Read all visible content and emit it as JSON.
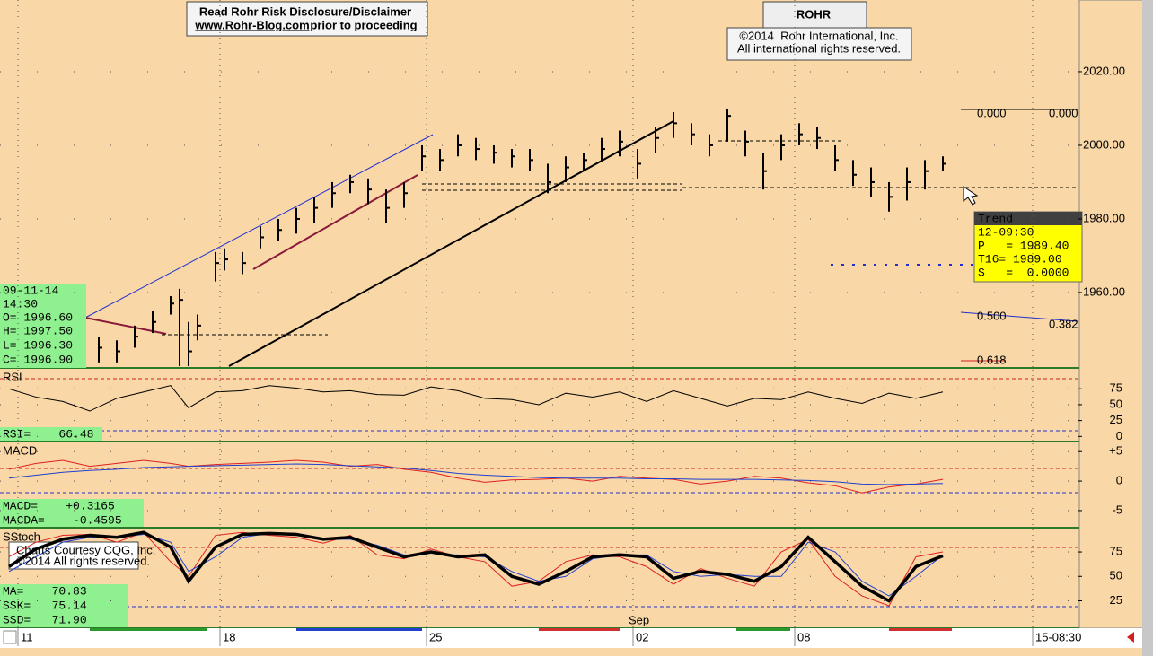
{
  "chart_data": [
    {
      "type": "ohlc",
      "color": "#000000",
      "x": [
        11,
        13,
        15,
        17,
        19,
        20,
        21,
        22,
        24,
        25,
        27,
        29,
        31,
        33,
        35,
        37,
        39,
        41,
        43,
        45,
        47,
        49,
        51,
        53,
        55,
        57,
        59,
        61,
        63,
        65,
        67,
        69,
        71,
        73,
        75,
        77,
        79,
        81,
        83,
        85,
        87,
        89,
        91,
        93,
        95,
        97,
        99,
        101,
        103,
        105
      ],
      "high": [
        1948,
        1947,
        1951,
        1955,
        1959,
        1961,
        1952,
        1954,
        1971,
        1972,
        1971,
        1978,
        1980,
        1983,
        1986,
        1990,
        1992,
        1991,
        1988,
        1990,
        2000,
        1999,
        2003,
        2002,
        2000,
        1999,
        1999,
        1995,
        1997,
        1998,
        2002,
        2004,
        1999,
        2005,
        2009,
        2006,
        2003,
        2010,
        2004,
        1998,
        2003,
        2006,
        2005,
        2000,
        1996,
        1994,
        1990,
        1994,
        1996,
        1997
      ],
      "low": [
        1941,
        1941,
        1945,
        1949,
        1954,
        1940,
        1940,
        1947,
        1963,
        1966,
        1965,
        1972,
        1974,
        1976,
        1979,
        1983,
        1987,
        1984,
        1979,
        1983,
        1993,
        1993,
        1997,
        1996,
        1995,
        1994,
        1993,
        1987,
        1990,
        1993,
        1996,
        1997,
        1991,
        1998,
        2002,
        2000,
        1997,
        2001,
        1997,
        1988,
        1996,
        2000,
        1999,
        1993,
        1989,
        1986,
        1982,
        1985,
        1988,
        1993
      ],
      "close": [
        1945,
        1944,
        1948,
        1952,
        1957,
        1958,
        1944,
        1951,
        1968,
        1969,
        1968,
        1975,
        1977,
        1980,
        1983,
        1987,
        1990,
        1988,
        1983,
        1987,
        1997,
        1996,
        2000,
        1999,
        1998,
        1997,
        1996,
        1990,
        1994,
        1996,
        1999,
        2001,
        1995,
        2002,
        2006,
        2003,
        2000,
        2008,
        2001,
        1993,
        2000,
        2003,
        2002,
        1996,
        1992,
        1990,
        1986,
        1990,
        1993,
        1995
      ],
      "xlim": [
        0,
        120
      ],
      "ylim": [
        1939.5,
        2039.5
      ],
      "yticks": [
        {
          "value": 1960,
          "label": "1960.00"
        },
        {
          "value": 1980,
          "label": "1980.00"
        },
        {
          "value": 2000,
          "label": "2000.00"
        },
        {
          "value": 2020,
          "label": "2020.00"
        }
      ],
      "annotations": [
        "Read Rohr Risk Disclosure/Disclaimer",
        "www.Rohr-Blog.com",
        "prior to proceeding",
        "ROHR",
        "©2014  Rohr International, Inc.",
        "All international rights reserved.",
        "09-11-14",
        "14:30",
        "O= 1996.60",
        "H= 1997.50",
        "L= 1996.30",
        "C= 1996.90",
        "Trend",
        "12-09:30",
        "P   = 1989.40",
        "T16= 1989.00",
        "S   =  0.0000",
        "0.000",
        "0.000",
        "0.500",
        "0.382",
        "0.618"
      ]
    },
    {
      "type": "line",
      "title": "RSI",
      "xlim": [
        0,
        120
      ],
      "ylim": [
        -8,
        105
      ],
      "yticks": [
        0,
        25,
        50,
        75
      ],
      "x": [
        1,
        4,
        7,
        10,
        13,
        16,
        19,
        21,
        24,
        27,
        30,
        33,
        36,
        39,
        42,
        45,
        48,
        51,
        54,
        57,
        60,
        63,
        66,
        69,
        72,
        75,
        78,
        81,
        84,
        87,
        90,
        93,
        96,
        99,
        102,
        105
      ],
      "series": [
        {
          "color": "#000000",
          "values": [
            75,
            62,
            55,
            40,
            60,
            70,
            80,
            45,
            70,
            72,
            80,
            76,
            70,
            72,
            66,
            65,
            78,
            72,
            60,
            58,
            50,
            68,
            62,
            70,
            55,
            72,
            60,
            48,
            60,
            58,
            70,
            60,
            52,
            68,
            60,
            70
          ]
        }
      ],
      "annotations": [
        "RSI=    66.48"
      ]
    },
    {
      "type": "line",
      "title": "MACD",
      "xlim": [
        0,
        120
      ],
      "ylim": [
        -7.9,
        6.4
      ],
      "yticks": [
        {
          "value": 5,
          "label": "+5"
        },
        0,
        -5
      ],
      "x": [
        1,
        4,
        7,
        10,
        13,
        16,
        19,
        21,
        24,
        27,
        30,
        33,
        36,
        39,
        42,
        45,
        48,
        51,
        54,
        57,
        60,
        63,
        66,
        69,
        72,
        75,
        78,
        81,
        84,
        87,
        90,
        93,
        96,
        99,
        102,
        105
      ],
      "series": [
        {
          "color": "#e02020",
          "values": [
            2,
            3,
            3.5,
            2.5,
            3,
            3.5,
            3,
            2.5,
            2.8,
            3,
            3.2,
            3.5,
            3.2,
            2.5,
            2.8,
            2,
            1.5,
            0.5,
            -0.2,
            0.2,
            0.3,
            0.5,
            0,
            0.8,
            0.5,
            0.3,
            -0.5,
            0,
            0.8,
            0.5,
            -0.3,
            -0.8,
            -2,
            -1,
            -0.5,
            0.3
          ]
        },
        {
          "color": "#2040d0",
          "values": [
            0.5,
            1,
            1.5,
            1.8,
            2,
            2.3,
            2.4,
            2.5,
            2.6,
            2.7,
            2.8,
            2.9,
            2.8,
            2.6,
            2.4,
            2.2,
            1.8,
            1.3,
            1,
            0.8,
            0.6,
            0.5,
            0.5,
            0.5,
            0.4,
            0.4,
            0.3,
            0.3,
            0.3,
            0.2,
            0.1,
            -0.1,
            -0.5,
            -0.6,
            -0.5,
            -0.4
          ]
        }
      ],
      "annotations": [
        "MACD=    +0.3165",
        "MACDA=    -0.4595"
      ]
    },
    {
      "type": "line",
      "title": "SStoch",
      "xlim": [
        0,
        120
      ],
      "ylim": [
        -3,
        98
      ],
      "yticks": [
        25,
        50,
        75
      ],
      "xticks": [
        {
          "value": 2,
          "label": "11"
        },
        {
          "value": 24.5,
          "label": "18"
        },
        {
          "value": 47.5,
          "label": "25"
        },
        {
          "value": 70.5,
          "label": "02"
        },
        {
          "value": 88.5,
          "label": "08"
        },
        {
          "value": 115,
          "label": "15-08:30"
        }
      ],
      "x": [
        1,
        4,
        7,
        10,
        13,
        16,
        19,
        21,
        24,
        27,
        30,
        33,
        36,
        39,
        42,
        45,
        48,
        51,
        54,
        57,
        60,
        63,
        66,
        69,
        72,
        75,
        78,
        81,
        84,
        87,
        90,
        93,
        96,
        99,
        102,
        105
      ],
      "series": [
        {
          "color": "#e02020",
          "width": 1,
          "values": [
            70,
            85,
            92,
            93,
            85,
            95,
            65,
            50,
            92,
            95,
            92,
            90,
            84,
            92,
            72,
            68,
            78,
            70,
            65,
            40,
            45,
            65,
            72,
            70,
            60,
            42,
            58,
            48,
            40,
            75,
            88,
            50,
            30,
            20,
            70,
            75
          ]
        },
        {
          "color": "#2040d0",
          "width": 1,
          "values": [
            55,
            70,
            85,
            90,
            90,
            93,
            85,
            55,
            70,
            90,
            94,
            92,
            88,
            88,
            82,
            72,
            72,
            72,
            70,
            55,
            45,
            50,
            68,
            72,
            72,
            55,
            50,
            52,
            50,
            50,
            85,
            75,
            45,
            30,
            50,
            72
          ]
        },
        {
          "color": "#000000",
          "width": 3.5,
          "values": [
            60,
            78,
            88,
            92,
            90,
            95,
            80,
            45,
            80,
            93,
            94,
            93,
            88,
            90,
            80,
            70,
            75,
            70,
            72,
            50,
            42,
            55,
            70,
            72,
            70,
            48,
            55,
            52,
            45,
            60,
            90,
            65,
            40,
            25,
            60,
            71
          ]
        }
      ],
      "annotations": [
        "Charts Courtesy CQG, Inc.",
        "©2014 All rights reserved.",
        "MA=    70.83",
        "SSK=   75.14",
        "SSD=   71.90",
        "Sep"
      ]
    }
  ]
}
